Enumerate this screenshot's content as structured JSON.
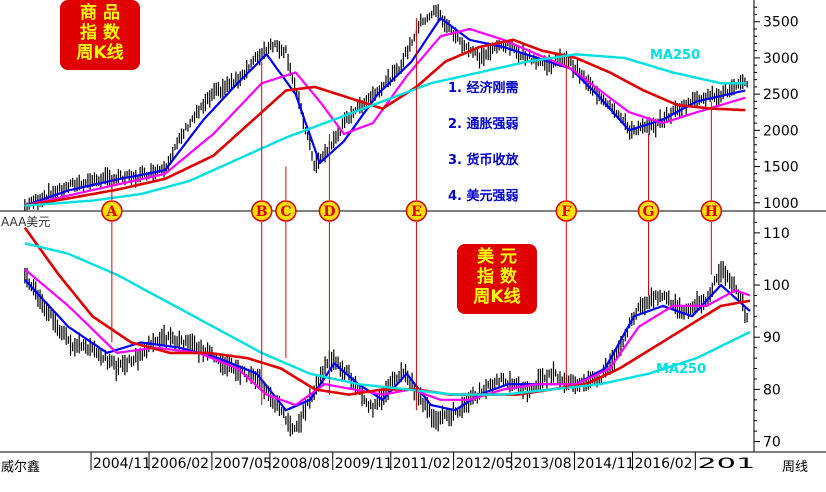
{
  "top_badge": [
    "商 品",
    "指 数",
    "周K线"
  ],
  "bottom_badge": [
    "美 元",
    "指 数",
    "周K线"
  ],
  "factors": [
    "1. 经济刚需",
    "2. 通胀强弱",
    "3. 货币收放",
    "4. 美元强弱"
  ],
  "ma_label_top": "MA250",
  "ma_label_bottom": "MA250",
  "bottom_panel_name": "AAA美元",
  "x_axis_left_label": "威尔鑫",
  "x_axis_right_label": "周线",
  "colors": {
    "candle": "#000000",
    "ma_blue": "#0000ff",
    "ma_magenta": "#ff00ff",
    "ma_red": "#e00000",
    "ma250": "#00e0e0",
    "vline": "#e00000",
    "marker_fill": "#ffe000"
  },
  "chart_data": [
    {
      "type": "line",
      "title": "商品指数周K线",
      "ylim": [
        900,
        3800
      ],
      "y_ticks": [
        "1000",
        "1500",
        "2000",
        "2500",
        "3000",
        "3500"
      ],
      "x_range": [
        2002.5,
        2017.6
      ],
      "series": [
        {
          "name": "price",
          "x": [
            2002.6,
            2003.0,
            2003.6,
            2004.2,
            2004.9,
            2005.5,
            2006.0,
            2006.5,
            2007.0,
            2007.4,
            2007.7,
            2008.0,
            2008.3,
            2008.6,
            2008.9,
            2009.3,
            2009.8,
            2010.3,
            2010.8,
            2011.1,
            2011.5,
            2012.0,
            2012.5,
            2012.9,
            2013.4,
            2013.8,
            2014.3,
            2014.8,
            2015.1,
            2015.6,
            2016.0,
            2016.5,
            2017.0,
            2017.5
          ],
          "values": [
            960,
            1080,
            1250,
            1330,
            1350,
            1500,
            2100,
            2500,
            2700,
            3000,
            3200,
            3100,
            2300,
            1500,
            1750,
            2200,
            2500,
            2800,
            3500,
            3650,
            3300,
            3000,
            3200,
            3050,
            2900,
            3000,
            2600,
            2300,
            2000,
            2050,
            2250,
            2450,
            2500,
            2650
          ]
        },
        {
          "name": "MA-blue",
          "x": [
            2002.6,
            2003.5,
            2004.5,
            2005.5,
            2006.3,
            2007.0,
            2007.6,
            2008.2,
            2008.7,
            2009.2,
            2009.9,
            2010.6,
            2011.2,
            2011.8,
            2012.5,
            2013.2,
            2013.9,
            2014.5,
            2015.1,
            2015.8,
            2016.5,
            2017.5
          ],
          "values": [
            960,
            1170,
            1320,
            1450,
            2150,
            2650,
            3050,
            2500,
            1550,
            1850,
            2500,
            2950,
            3550,
            3250,
            3150,
            3000,
            2850,
            2450,
            2000,
            2150,
            2400,
            2550
          ]
        },
        {
          "name": "MA-magenta",
          "x": [
            2002.6,
            2003.5,
            2004.5,
            2005.5,
            2006.5,
            2007.5,
            2008.2,
            2008.7,
            2009.2,
            2009.8,
            2010.5,
            2011.2,
            2011.8,
            2012.5,
            2013.2,
            2013.9,
            2014.5,
            2015.1,
            2015.8,
            2016.5,
            2017.5
          ],
          "values": [
            960,
            1100,
            1250,
            1400,
            1950,
            2650,
            2800,
            2400,
            1950,
            2100,
            2750,
            3300,
            3400,
            3250,
            3050,
            2850,
            2550,
            2250,
            2100,
            2250,
            2450
          ]
        },
        {
          "name": "MA-red",
          "x": [
            2002.6,
            2003.5,
            2004.5,
            2005.5,
            2006.5,
            2007.5,
            2008.0,
            2008.6,
            2009.3,
            2010.0,
            2010.7,
            2011.3,
            2012.0,
            2012.7,
            2013.3,
            2014.0,
            2014.7,
            2015.4,
            2016.1,
            2016.8,
            2017.5
          ],
          "values": [
            960,
            1060,
            1180,
            1330,
            1650,
            2250,
            2550,
            2600,
            2450,
            2300,
            2600,
            2950,
            3150,
            3250,
            3100,
            3000,
            2800,
            2550,
            2350,
            2300,
            2280
          ]
        },
        {
          "name": "MA250",
          "x": [
            2002.6,
            2004.0,
            2005.0,
            2006.0,
            2007.0,
            2008.0,
            2009.0,
            2010.0,
            2011.0,
            2012.0,
            2013.0,
            2014.0,
            2015.0,
            2016.0,
            2017.0,
            2017.5
          ],
          "values": [
            960,
            1030,
            1120,
            1300,
            1600,
            1900,
            2150,
            2400,
            2650,
            2800,
            2950,
            3050,
            3000,
            2800,
            2650,
            2650
          ]
        }
      ]
    },
    {
      "type": "line",
      "title": "美元指数周K线",
      "ylim": [
        68,
        114
      ],
      "y_ticks": [
        "70",
        "80",
        "90",
        "100",
        "110"
      ],
      "x_range": [
        2002.5,
        2017.6
      ],
      "series": [
        {
          "name": "price",
          "x": [
            2002.6,
            2003.0,
            2003.5,
            2004.0,
            2004.5,
            2004.9,
            2005.4,
            2005.9,
            2006.4,
            2006.9,
            2007.4,
            2007.9,
            2008.2,
            2008.6,
            2008.9,
            2009.3,
            2009.8,
            2010.4,
            2010.8,
            2011.1,
            2011.6,
            2012.1,
            2012.5,
            2013.0,
            2013.5,
            2014.0,
            2014.5,
            2014.9,
            2015.3,
            2015.8,
            2016.2,
            2016.7,
            2017.0,
            2017.3,
            2017.6
          ],
          "values": [
            102,
            96,
            89,
            88,
            84,
            86,
            90,
            89,
            87,
            84,
            82,
            76,
            72,
            80,
            86,
            83,
            76,
            84,
            78,
            74,
            76,
            80,
            82,
            80,
            83,
            81,
            82,
            88,
            96,
            98,
            95,
            97,
            103,
            100,
            92
          ]
        },
        {
          "name": "MA-blue",
          "x": [
            2002.6,
            2003.5,
            2004.3,
            2005.0,
            2005.8,
            2006.6,
            2007.4,
            2008.0,
            2008.5,
            2009.0,
            2009.5,
            2010.0,
            2010.5,
            2011.0,
            2011.5,
            2012.0,
            2012.6,
            2013.3,
            2014.0,
            2014.6,
            2015.2,
            2015.8,
            2016.4,
            2017.0,
            2017.6
          ],
          "values": [
            101,
            92,
            87,
            89,
            88,
            86,
            83,
            76,
            78,
            85,
            81,
            78,
            83,
            77,
            76,
            79,
            81,
            81,
            81,
            84,
            94,
            96,
            94,
            100,
            95
          ]
        },
        {
          "name": "MA-magenta",
          "x": [
            2002.6,
            2003.5,
            2004.5,
            2005.3,
            2006.2,
            2007.0,
            2007.6,
            2008.2,
            2008.8,
            2009.4,
            2010.0,
            2010.6,
            2011.2,
            2011.8,
            2012.5,
            2013.2,
            2014.0,
            2014.7,
            2015.3,
            2016.0,
            2016.7,
            2017.3,
            2017.6
          ],
          "values": [
            103,
            96,
            87,
            88,
            87,
            84,
            79,
            77,
            81,
            80,
            79,
            80,
            78,
            78,
            80,
            81,
            81,
            84,
            92,
            96,
            96,
            99,
            98
          ]
        },
        {
          "name": "MA-red",
          "x": [
            2002.6,
            2003.3,
            2004.0,
            2004.8,
            2005.6,
            2006.4,
            2007.2,
            2007.9,
            2008.6,
            2009.3,
            2010.0,
            2010.7,
            2011.4,
            2012.1,
            2012.8,
            2013.5,
            2014.2,
            2014.9,
            2015.6,
            2016.3,
            2017.0,
            2017.6
          ],
          "values": [
            111,
            102,
            94,
            89,
            87,
            87,
            86,
            84,
            80,
            79,
            80,
            80,
            79,
            79,
            79,
            80,
            81,
            84,
            88,
            92,
            96,
            97
          ]
        },
        {
          "name": "MA250",
          "x": [
            2002.6,
            2003.5,
            2004.5,
            2005.5,
            2006.5,
            2007.5,
            2008.5,
            2009.5,
            2010.5,
            2011.5,
            2012.5,
            2013.5,
            2014.5,
            2015.5,
            2016.5,
            2017.6
          ],
          "values": [
            108,
            106,
            102,
            97,
            92,
            87,
            83,
            81,
            80,
            79,
            79,
            80,
            81,
            83,
            86,
            91
          ]
        }
      ]
    }
  ],
  "x_ticks": [
    {
      "label": "2004/11",
      "x": 2004.9
    },
    {
      "label": "2006/02",
      "x": 2006.1
    },
    {
      "label": "2007/05",
      "x": 2007.4
    },
    {
      "label": "2008/08",
      "x": 2008.6
    },
    {
      "label": "2009/11",
      "x": 2009.9
    },
    {
      "label": "2011/02",
      "x": 2011.1
    },
    {
      "label": "2012/05",
      "x": 2012.4
    },
    {
      "label": "2013/08",
      "x": 2013.6
    },
    {
      "label": "2014/11",
      "x": 2014.9
    },
    {
      "label": "2016/02",
      "x": 2016.1
    },
    {
      "label": "201",
      "x": 2017.4
    }
  ],
  "events": [
    {
      "label": "A",
      "x": 2004.4,
      "y_top": 1320,
      "y_bottom": 89
    },
    {
      "label": "B",
      "x": 2007.5,
      "y_top": 2950,
      "y_bottom": 77
    },
    {
      "label": "C",
      "x": 2008.0,
      "y_top": 1500,
      "y_bottom": 86
    },
    {
      "label": "D",
      "x": 2008.9,
      "y_top": 1950,
      "y_bottom": 79
    },
    {
      "label": "E",
      "x": 2010.7,
      "y_top": 3550,
      "y_bottom": 76
    },
    {
      "label": "F",
      "x": 2013.8,
      "y_top": 3000,
      "y_bottom": 80
    },
    {
      "label": "G",
      "x": 2015.5,
      "y_top": 1950,
      "y_bottom": 98
    },
    {
      "label": "H",
      "x": 2016.8,
      "y_top": 2400,
      "y_bottom": 102
    }
  ]
}
